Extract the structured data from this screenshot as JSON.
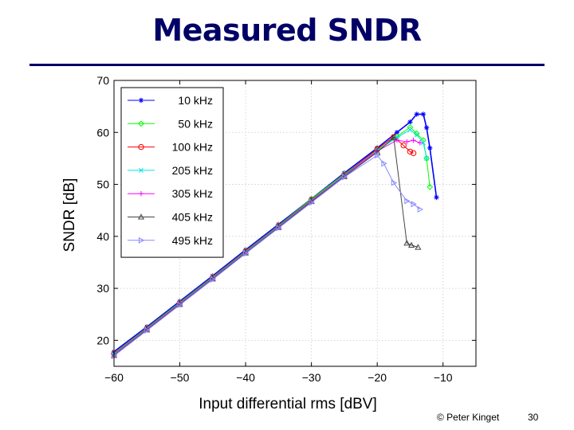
{
  "slide": {
    "title": "Measured SNDR",
    "footer": "© Peter Kinget",
    "page_number": "30",
    "title_color": "#000066"
  },
  "chart_data": {
    "type": "line",
    "title": "",
    "xlabel": "Input differential rms [dBV]",
    "ylabel": "SNDR [dB]",
    "xlim": [
      -60,
      -5
    ],
    "ylim": [
      15,
      70
    ],
    "xticks": [
      -60,
      -50,
      -40,
      -30,
      -20,
      -10
    ],
    "yticks": [
      20,
      30,
      40,
      50,
      60,
      70
    ],
    "grid": true,
    "legend_position": "top-left",
    "series": [
      {
        "name": "10 kHz",
        "color": "#0000ff",
        "marker": "asterisk",
        "x": [
          -60,
          -55,
          -50,
          -45,
          -40,
          -35,
          -30,
          -25,
          -20,
          -17,
          -15,
          -14,
          -13,
          -12.5,
          -12,
          -11
        ],
        "y": [
          17.8,
          22.6,
          27.5,
          32.4,
          37.4,
          42.3,
          47.2,
          52.2,
          57.0,
          60.0,
          62.0,
          63.5,
          63.5,
          60.9,
          57.0,
          47.5
        ]
      },
      {
        "name": "50 kHz",
        "color": "#00ff00",
        "marker": "diamond",
        "x": [
          -60,
          -55,
          -50,
          -45,
          -40,
          -35,
          -30,
          -25,
          -20,
          -17,
          -15,
          -14,
          -13,
          -12.5,
          -12
        ],
        "y": [
          17.5,
          22.4,
          27.3,
          32.2,
          37.2,
          42.1,
          47.2,
          52.0,
          56.6,
          59.2,
          61.0,
          59.8,
          58.5,
          55.0,
          49.5
        ]
      },
      {
        "name": "100 kHz",
        "color": "#ff0000",
        "marker": "circle",
        "x": [
          -60,
          -55,
          -50,
          -45,
          -40,
          -35,
          -30,
          -25,
          -20,
          -17.5,
          -16,
          -15,
          -14.5
        ],
        "y": [
          17.4,
          22.3,
          27.2,
          32.1,
          37.1,
          42.0,
          47.0,
          51.8,
          56.8,
          59.1,
          57.5,
          56.3,
          56.0
        ]
      },
      {
        "name": "205 kHz",
        "color": "#00e5e5",
        "marker": "x",
        "x": [
          -60,
          -55,
          -50,
          -45,
          -40,
          -35,
          -30,
          -25,
          -20,
          -17,
          -15,
          -14,
          -13,
          -12.5
        ],
        "y": [
          17.3,
          22.2,
          27.1,
          32.0,
          37.0,
          41.9,
          46.9,
          51.7,
          56.5,
          59.0,
          60.5,
          59.5,
          58.0,
          55.0
        ]
      },
      {
        "name": "305 kHz",
        "color": "#ff00ff",
        "marker": "plus",
        "x": [
          -60,
          -55,
          -50,
          -45,
          -40,
          -35,
          -30,
          -25,
          -20,
          -17,
          -15.5,
          -14.5,
          -13.5
        ],
        "y": [
          17.2,
          22.1,
          27.0,
          31.9,
          36.9,
          41.8,
          46.8,
          51.6,
          56.4,
          58.5,
          58.2,
          58.5,
          58.0
        ]
      },
      {
        "name": "405 kHz",
        "color": "#444444",
        "marker": "triangle-up",
        "x": [
          -60,
          -55,
          -50,
          -45,
          -40,
          -35,
          -30,
          -25,
          -20,
          -17.5,
          -15.5,
          -14.8,
          -13.8
        ],
        "y": [
          17.1,
          22.0,
          26.9,
          31.8,
          36.8,
          41.7,
          46.7,
          51.5,
          56.2,
          59.0,
          38.7,
          38.3,
          37.9
        ]
      },
      {
        "name": "495 kHz",
        "color": "#8888ff",
        "marker": "triangle-right",
        "x": [
          -60,
          -55,
          -50,
          -45,
          -40,
          -35,
          -30,
          -25,
          -20,
          -19,
          -17.5,
          -15.5,
          -14.5,
          -13.5
        ],
        "y": [
          17.0,
          21.9,
          26.8,
          31.7,
          36.7,
          41.6,
          46.5,
          51.4,
          55.6,
          54.0,
          50.3,
          46.8,
          46.2,
          45.2
        ]
      }
    ]
  }
}
